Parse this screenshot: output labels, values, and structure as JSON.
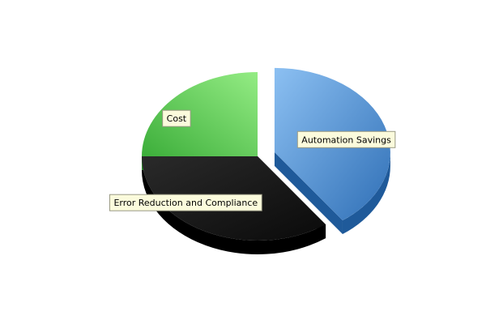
{
  "chart_data": {
    "type": "pie",
    "style": "3d-exploded",
    "title": "",
    "slices": [
      {
        "label": "Automation Savings",
        "value": 40,
        "color": "#3d7fc4",
        "exploded": true
      },
      {
        "label": "Error Reduction and Compliance",
        "value": 35,
        "color": "#1c1c1c",
        "exploded": false
      },
      {
        "label": "Cost",
        "value": 25,
        "color": "#5cc85a",
        "exploded": false
      }
    ],
    "legend": "none",
    "labels_shown": true
  }
}
